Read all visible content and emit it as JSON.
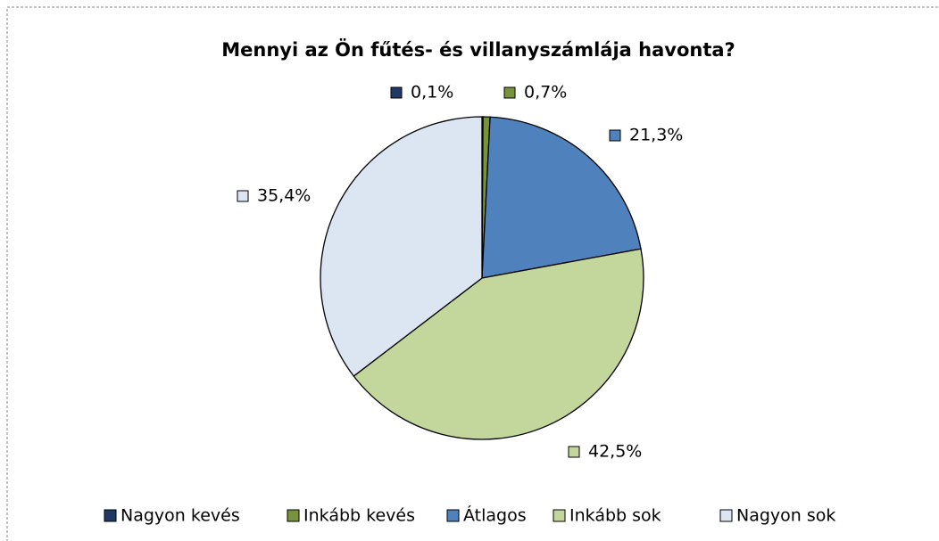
{
  "chart_data": {
    "type": "pie",
    "title": "Mennyi az Ön fűtés- és villanyszámlája havonta?",
    "categories": [
      "Nagyon kevés",
      "Inkább kevés",
      "Átlagos",
      "Inkább sok",
      "Nagyon sok"
    ],
    "values": [
      0.1,
      0.7,
      21.3,
      42.5,
      35.4
    ],
    "value_labels": [
      "0,1%",
      "0,7%",
      "21,3%",
      "42,5%",
      "35,4%"
    ],
    "colors": [
      "#1f3864",
      "#77933c",
      "#4f81bd",
      "#c3d69b",
      "#dce6f2"
    ],
    "legend": "bottom"
  }
}
